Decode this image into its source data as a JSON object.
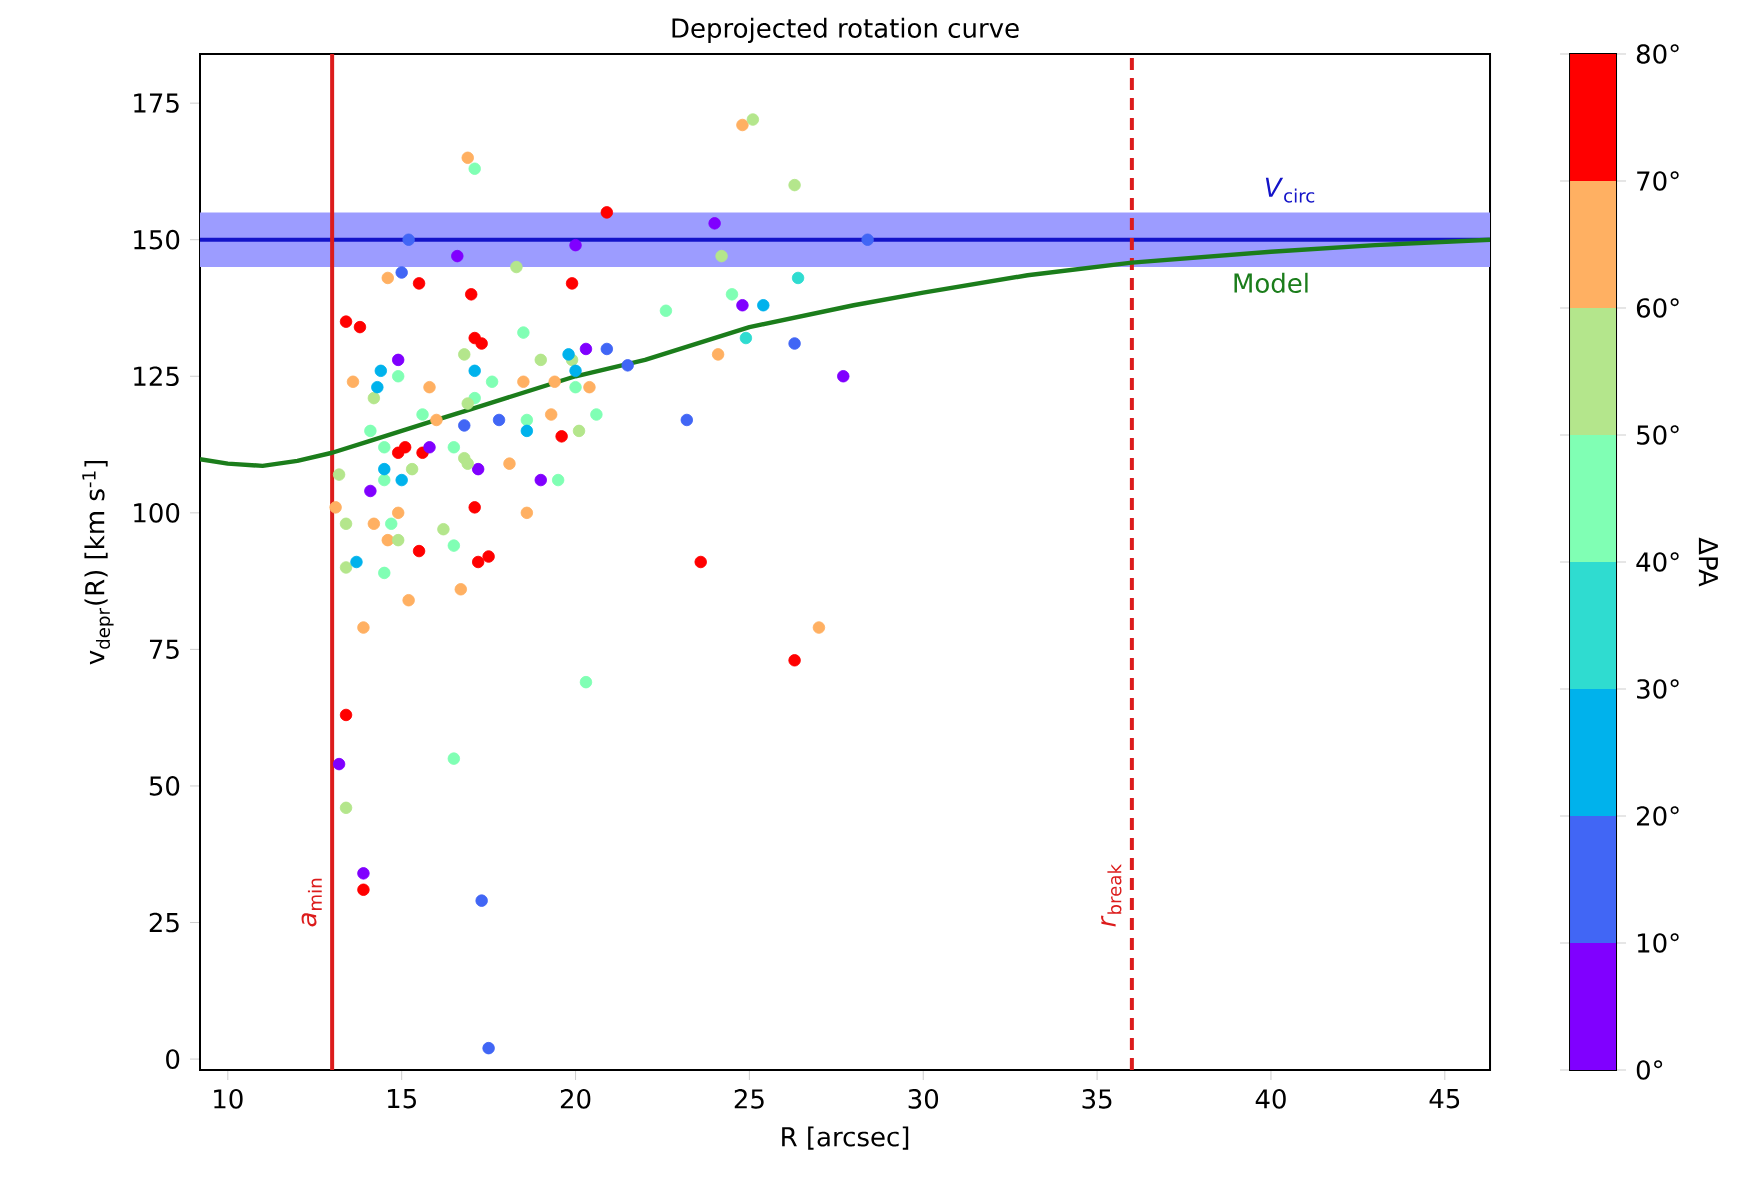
{
  "chart_data": {
    "type": "scatter",
    "title": "Deprojected rotation curve",
    "xlabel": "R [arcsec]",
    "ylabel": "v$_{depr}$(R) [km s$^{-1}$]",
    "clabel": "ΔPA",
    "xlim": [
      9.2,
      46.3
    ],
    "ylim": [
      -2,
      184
    ],
    "xticks": [
      10,
      15,
      20,
      25,
      30,
      35,
      40,
      45
    ],
    "yticks": [
      0,
      25,
      50,
      75,
      100,
      125,
      150,
      175
    ],
    "clim": [
      0,
      80
    ],
    "cticks": [
      {
        "value": 0,
        "label": "0°"
      },
      {
        "value": 10,
        "label": "10°"
      },
      {
        "value": 20,
        "label": "20°"
      },
      {
        "value": 30,
        "label": "30°"
      },
      {
        "value": 40,
        "label": "40°"
      },
      {
        "value": 50,
        "label": "50°"
      },
      {
        "value": 60,
        "label": "60°"
      },
      {
        "value": 70,
        "label": "70°"
      },
      {
        "value": 80,
        "label": "80°"
      }
    ],
    "series": [
      {
        "marker": "circle",
        "x": [
          16.9,
          17.1,
          20.9,
          15.2,
          16.6,
          20.0,
          18.3,
          14.6,
          15.0,
          15.5,
          17.0,
          19.9,
          13.4,
          13.8,
          17.1,
          17.3,
          18.5,
          14.9,
          14.4,
          14.9,
          13.6,
          14.3,
          16.8,
          17.1,
          17.6,
          15.8,
          18.5,
          19.0,
          19.4,
          19.8,
          20.3,
          20.9,
          19.9,
          20.0,
          20.0,
          20.4,
          21.5,
          14.2,
          16.9,
          17.1,
          15.6,
          17.8,
          16.8,
          18.6,
          18.6,
          19.3,
          20.6,
          16.0,
          14.1,
          19.6,
          20.1,
          16.5,
          14.5,
          15.8,
          14.9,
          15.1,
          15.6,
          16.8,
          16.9,
          18.1,
          14.5,
          15.3,
          17.2,
          19.0,
          19.5,
          15.0,
          13.2,
          14.1,
          14.5,
          13.1,
          13.4,
          14.2,
          14.9,
          14.7,
          17.1,
          18.6,
          16.2,
          14.6,
          14.9,
          15.5,
          16.5,
          17.2,
          17.5,
          13.7,
          13.4,
          14.5,
          16.7,
          15.2,
          13.9,
          20.3,
          13.4,
          16.5,
          13.2,
          13.4,
          13.9,
          13.9,
          17.3,
          17.5,
          26.3,
          24.0,
          24.2,
          28.4,
          26.4,
          22.6,
          24.5,
          24.8,
          25.4,
          24.9,
          24.1,
          26.3,
          27.7,
          23.2,
          23.6,
          27.0,
          26.3,
          24.8,
          25.1
        ],
        "values": [
          165,
          163,
          155,
          150,
          147,
          149,
          145,
          143,
          144,
          142,
          140,
          142,
          135,
          134,
          132,
          131,
          133,
          128,
          126,
          125,
          124,
          123,
          129,
          126,
          124,
          123,
          124,
          128,
          124,
          129,
          130,
          130,
          128,
          126,
          123,
          123,
          127,
          121,
          120,
          121,
          118,
          117,
          116,
          117,
          115,
          118,
          118,
          117,
          115,
          114,
          115,
          112,
          112,
          112,
          111,
          112,
          111,
          110,
          109,
          109,
          108,
          108,
          108,
          106,
          106,
          106,
          107,
          104,
          106,
          101,
          98,
          98,
          100,
          98,
          101,
          100,
          97,
          95,
          95,
          93,
          94,
          91,
          92,
          91,
          90,
          89,
          86,
          84,
          79,
          69,
          63,
          55,
          54,
          46,
          34,
          31,
          29,
          2,
          160,
          153,
          147,
          150,
          143,
          137,
          140,
          138,
          138,
          132,
          129,
          131,
          125,
          117,
          91,
          79,
          73,
          171,
          172
        ],
        "colors": [
          "#ffb062",
          "#80ffb4",
          "#ff0000",
          "#4166f5",
          "#8000ff",
          "#8000ff",
          "#b4e68c",
          "#ffb062",
          "#4166f5",
          "#ff0000",
          "#ff0000",
          "#ff0000",
          "#ff0000",
          "#ff0000",
          "#ff0000",
          "#ff0000",
          "#80ffb4",
          "#8000ff",
          "#00b2ec",
          "#80ffb4",
          "#ffb062",
          "#00b2ec",
          "#b4e68c",
          "#00b2ec",
          "#80ffb4",
          "#ffb062",
          "#ffb062",
          "#b4e68c",
          "#ffb062",
          "#00b2ec",
          "#8000ff",
          "#4166f5",
          "#b4e68c",
          "#00b2ec",
          "#80ffb4",
          "#ffb062",
          "#4166f5",
          "#b4e68c",
          "#b4e68c",
          "#80ffb4",
          "#80ffb4",
          "#4166f5",
          "#4166f5",
          "#80ffb4",
          "#00b2ec",
          "#ffb062",
          "#80ffb4",
          "#ffb062",
          "#80ffb4",
          "#ff0000",
          "#b4e68c",
          "#80ffb4",
          "#80ffb4",
          "#8000ff",
          "#ff0000",
          "#ff0000",
          "#ff0000",
          "#b4e68c",
          "#b4e68c",
          "#ffb062",
          "#00b2ec",
          "#b4e68c",
          "#8000ff",
          "#8000ff",
          "#80ffb4",
          "#00b2ec",
          "#b4e68c",
          "#8000ff",
          "#80ffb4",
          "#ffb062",
          "#b4e68c",
          "#ffb062",
          "#ffb062",
          "#80ffb4",
          "#ff0000",
          "#ffb062",
          "#b4e68c",
          "#ffb062",
          "#b4e68c",
          "#ff0000",
          "#80ffb4",
          "#ff0000",
          "#ff0000",
          "#00b2ec",
          "#b4e68c",
          "#80ffb4",
          "#ffb062",
          "#ffb062",
          "#ffb062",
          "#80ffb4",
          "#ff0000",
          "#80ffb4",
          "#8000ff",
          "#b4e68c",
          "#8000ff",
          "#ff0000",
          "#4166f5",
          "#4166f5",
          "#b4e68c",
          "#8000ff",
          "#b4e68c",
          "#4166f5",
          "#2fdcd0",
          "#80ffb4",
          "#80ffb4",
          "#8000ff",
          "#00b2ec",
          "#2fdcd0",
          "#ffb062",
          "#4166f5",
          "#8000ff",
          "#4166f5",
          "#ff0000",
          "#ffb062",
          "#ff0000",
          "#ffb062",
          "#b4e68c"
        ]
      },
      {
        "type": "line",
        "name": "Model",
        "color": "#1b7d1b",
        "marker": "none",
        "line_style": "solid",
        "x": [
          9.2,
          10,
          11,
          12,
          13,
          14,
          15,
          16,
          17,
          18,
          20,
          22,
          25,
          28,
          30,
          33,
          36,
          40,
          43,
          46.3
        ],
        "values": [
          109.8,
          109,
          108.6,
          109.5,
          111,
          113,
          115,
          117,
          119,
          121,
          125,
          128,
          134,
          138,
          140.3,
          143.5,
          145.8,
          147.8,
          149,
          150
        ]
      }
    ],
    "ref_lines": [
      {
        "axis": "y",
        "value": 150,
        "label": "*V*$_{circ}$",
        "color": "#1414c8",
        "line_style": "solid"
      },
      {
        "axis": "x",
        "value": 13,
        "label": "*a*$_{min}$",
        "color": "#dc1c1c",
        "line_style": "solid"
      },
      {
        "axis": "x",
        "value": 36,
        "label": "*r*$_{break}$",
        "color": "#dc1c1c",
        "line_style": "dashed"
      }
    ],
    "bands": [
      {
        "axis": "y",
        "from": 145,
        "to": 155,
        "color": "#9c9cff"
      }
    ]
  }
}
